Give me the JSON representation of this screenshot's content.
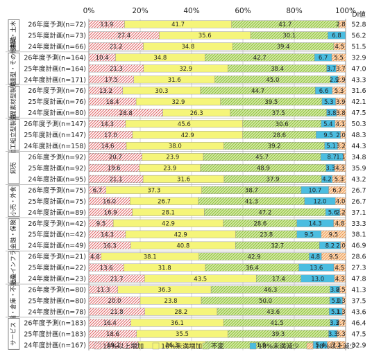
{
  "chart_data": {
    "type": "bar",
    "orientation": "horizontal",
    "stacked": true,
    "percent": true,
    "xlim": [
      0,
      100
    ],
    "x_ticks": [
      "0%",
      "20%",
      "40%",
      "60%",
      "80%",
      "100%"
    ],
    "di_header": "DI値",
    "series": [
      {
        "name": "10%以上増加",
        "color": "#e07070",
        "pattern": "hatch"
      },
      {
        "name": "10%未満増加",
        "color": "#f2f26a",
        "pattern": "solid"
      },
      {
        "name": "不変",
        "color": "#a6d250",
        "pattern": "hatch"
      },
      {
        "name": "10%未満減少",
        "color": "#43b8dc",
        "pattern": "solid"
      },
      {
        "name": "10%以上減少",
        "color": "#f0a060",
        "pattern": "hatch"
      }
    ],
    "groups": [
      {
        "name": "建築・土木",
        "rows": [
          {
            "label": "26年度予測(n=72)",
            "values": [
              13.9,
              41.7,
              41.7,
              0,
              2.8
            ],
            "labels": [
              "13.9",
              "41.7",
              "41.7",
              "",
              "2.8"
            ],
            "di": "52.8"
          },
          {
            "label": "25年度計画(n=73)",
            "values": [
              27.4,
              35.6,
              30.1,
              6.8,
              0
            ],
            "labels": [
              "27.4",
              "35.6",
              "30.1",
              "6.8",
              ""
            ],
            "di": "56.2"
          },
          {
            "label": "24年度計画(n=66)",
            "values": [
              21.2,
              34.8,
              39.4,
              0,
              4.5
            ],
            "labels": [
              "21.2",
              "34.8",
              "39.4",
              "",
              "4.5"
            ],
            "di": "51.5"
          }
        ]
      },
      {
        "name": "生活関連型・その他製造",
        "rows": [
          {
            "label": "26年度予測(n=164)",
            "values": [
              10.4,
              34.8,
              42.7,
              6.7,
              5.5
            ],
            "labels": [
              "10.4",
              "34.8",
              "42.7",
              "6.7",
              "5.5"
            ],
            "di": "32.9"
          },
          {
            "label": "25年度計画(n=164)",
            "values": [
              21.3,
              32.9,
              38.4,
              3.7,
              3.7
            ],
            "labels": [
              "21.3",
              "32.9",
              "38.4",
              "3.7",
              "3.7"
            ],
            "di": "47.0"
          },
          {
            "label": "24年度計画(n=171)",
            "values": [
              17.5,
              31.6,
              45.0,
              2.9,
              2.9
            ],
            "labels": [
              "17.5",
              "31.6",
              "45.0",
              "2.9",
              "2.9"
            ],
            "di": "43.3"
          }
        ]
      },
      {
        "name": "基礎素材型製造",
        "rows": [
          {
            "label": "26年度予測(n=76)",
            "values": [
              13.2,
              30.3,
              44.7,
              6.6,
              5.3
            ],
            "labels": [
              "13.2",
              "30.3",
              "44.7",
              "6.6",
              "5.3"
            ],
            "di": "31.6"
          },
          {
            "label": "25年度計画(n=76)",
            "values": [
              18.4,
              32.9,
              39.5,
              5.3,
              3.9
            ],
            "labels": [
              "18.4",
              "32.9",
              "39.5",
              "5.3",
              "3.9"
            ],
            "di": "42.1"
          },
          {
            "label": "24年度計画(n=80)",
            "values": [
              28.8,
              26.3,
              37.5,
              3.8,
              3.8
            ],
            "labels": [
              "28.8",
              "26.3",
              "37.5",
              "3.8",
              "3.8"
            ],
            "di": "47.5"
          }
        ]
      },
      {
        "name": "加工組立型製造",
        "rows": [
          {
            "label": "26年度予測(n=147)",
            "values": [
              14.3,
              45.6,
              30.6,
              5.4,
              4.1
            ],
            "labels": [
              "14.3",
              "45.6",
              "30.6",
              "5.4",
              "4.1"
            ],
            "di": "50.3"
          },
          {
            "label": "25年度計画(n=147)",
            "values": [
              17.0,
              42.9,
              28.6,
              9.5,
              2.0
            ],
            "labels": [
              "17.0",
              "42.9",
              "28.6",
              "9.5",
              "2.0"
            ],
            "di": "48.3"
          },
          {
            "label": "24年度計画(n=158)",
            "values": [
              14.6,
              38.0,
              39.2,
              5.1,
              3.2
            ],
            "labels": [
              "14.6",
              "38.0",
              "39.2",
              "5.1",
              "3.2"
            ],
            "di": "44.3"
          }
        ]
      },
      {
        "name": "卸売",
        "rows": [
          {
            "label": "26年度予測(n=92)",
            "values": [
              20.7,
              23.9,
              45.7,
              8.7,
              1.1
            ],
            "labels": [
              "20.7",
              "23.9",
              "45.7",
              "8.7",
              "1.1"
            ],
            "di": "34.8"
          },
          {
            "label": "25年度計画(n=92)",
            "values": [
              19.6,
              23.9,
              48.9,
              3.3,
              4.3
            ],
            "labels": [
              "19.6",
              "23.9",
              "48.9",
              "3.3",
              "4.3"
            ],
            "di": "35.9"
          },
          {
            "label": "24年度計画(n=95)",
            "values": [
              21.1,
              31.6,
              37.9,
              4.2,
              5.3
            ],
            "labels": [
              "21.1",
              "31.6",
              "37.9",
              "4.2",
              "5.3"
            ],
            "di": "43.2"
          }
        ]
      },
      {
        "name": "小売・外食",
        "rows": [
          {
            "label": "26年度予測(n=75)",
            "values": [
              6.7,
              37.3,
              38.7,
              10.7,
              6.7
            ],
            "labels": [
              "6.7",
              "37.3",
              "38.7",
              "10.7",
              "6.7"
            ],
            "di": "26.7"
          },
          {
            "label": "25年度計画(n=75)",
            "values": [
              16.0,
              26.7,
              41.3,
              12.0,
              4.0
            ],
            "labels": [
              "16.0",
              "26.7",
              "41.3",
              "12.0",
              "4.0"
            ],
            "di": "26.7"
          },
          {
            "label": "24年度計画(n=89)",
            "values": [
              16.9,
              28.1,
              47.2,
              5.6,
              2.2
            ],
            "labels": [
              "16.9",
              "28.1",
              "47.2",
              "5.6",
              "2.2"
            ],
            "di": "37.1"
          }
        ]
      },
      {
        "name": "金融・保険",
        "rows": [
          {
            "label": "26年度予測(n=42)",
            "values": [
              9.5,
              42.9,
              28.6,
              14.3,
              4.8
            ],
            "labels": [
              "9.5",
              "42.9",
              "28.6",
              "14.3",
              "4.8"
            ],
            "di": "33.3"
          },
          {
            "label": "25年度計画(n=42)",
            "values": [
              14.3,
              42.9,
              23.8,
              9.5,
              9.5
            ],
            "labels": [
              "14.3",
              "42.9",
              "23.8",
              "9.5",
              "9.5"
            ],
            "di": "38.1"
          },
          {
            "label": "24年度計画(n=49)",
            "values": [
              16.3,
              40.8,
              32.7,
              8.2,
              2.0
            ],
            "labels": [
              "16.3",
              "40.8",
              "32.7",
              "8.2",
              "2.0"
            ],
            "di": "46.9"
          }
        ]
      },
      {
        "name": "社会インフラ",
        "rows": [
          {
            "label": "26年度予測(n=21)",
            "values": [
              4.8,
              38.1,
              42.9,
              4.8,
              9.5
            ],
            "labels": [
              "4.8",
              "38.1",
              "42.9",
              "4.8",
              "9.5"
            ],
            "di": "28.6"
          },
          {
            "label": "25年度計画(n=22)",
            "values": [
              13.6,
              31.8,
              36.4,
              13.6,
              4.5
            ],
            "labels": [
              "13.6",
              "31.8",
              "36.4",
              "13.6",
              "4.5"
            ],
            "di": "27.3"
          },
          {
            "label": "24年度計画(n=23)",
            "values": [
              21.7,
              43.5,
              17.4,
              13.0,
              4.3
            ],
            "labels": [
              "21.7",
              "43.5",
              "17.4",
              "13.0",
              "4.3"
            ],
            "di": "47.8"
          }
        ]
      },
      {
        "name": "運輸・倉庫・不動産",
        "rows": [
          {
            "label": "26年度予測(n=80)",
            "values": [
              11.3,
              36.3,
              46.3,
              3.8,
              2.5
            ],
            "labels": [
              "11.3",
              "36.3",
              "46.3",
              "3.8",
              "2.5"
            ],
            "di": "41.3"
          },
          {
            "label": "25年度計画(n=80)",
            "values": [
              20.0,
              23.8,
              50.0,
              5.0,
              1.3
            ],
            "labels": [
              "20.0",
              "23.8",
              "50.0",
              "5.0",
              "1.3"
            ],
            "di": "37.5"
          },
          {
            "label": "24年度計画(n=78)",
            "values": [
              21.8,
              28.2,
              43.6,
              5.1,
              1.3
            ],
            "labels": [
              "21.8",
              "28.2",
              "43.6",
              "5.1",
              "1.3"
            ],
            "di": "43.6"
          }
        ]
      },
      {
        "name": "サービス",
        "rows": [
          {
            "label": "26年度予測(n=183)",
            "values": [
              16.4,
              36.1,
              41.5,
              3.3,
              2.7
            ],
            "labels": [
              "16.4",
              "36.1",
              "41.5",
              "3.3",
              "2.7"
            ],
            "di": "46.4"
          },
          {
            "label": "25年度計画(n=183)",
            "values": [
              18.6,
              35.5,
              39.3,
              3.3,
              3.3
            ],
            "labels": [
              "18.6",
              "35.5",
              "39.3",
              "3.3",
              "3.3"
            ],
            "di": "47.5"
          },
          {
            "label": "24年度計画(n=167)",
            "values": [
              19.2,
              26.3,
              41.9,
              5.4,
              7.2
            ],
            "labels": [
              "19.2",
              "26.3",
              "41.9",
              "5.4",
              "7.2"
            ],
            "di": "32.9"
          }
        ]
      }
    ]
  }
}
